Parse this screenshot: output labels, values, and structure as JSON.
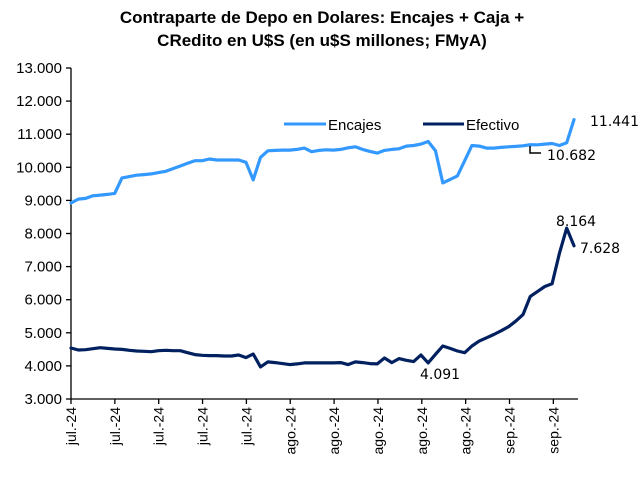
{
  "chart_data": {
    "type": "line",
    "title": [
      "Contraparte de Depo en Dolares: Encajes + Caja +",
      "CRedito en U$S  (en u$S millones; FMyA)"
    ],
    "xlabel": "",
    "ylabel": "",
    "ylim": [
      3000,
      13000
    ],
    "yticks": [
      3000,
      4000,
      5000,
      6000,
      7000,
      8000,
      9000,
      10000,
      11000,
      12000,
      13000
    ],
    "ytick_labels": [
      "3.000",
      "4.000",
      "5.000",
      "6.000",
      "7.000",
      "8.000",
      "9.000",
      "10.000",
      "11.000",
      "12.000",
      "13.000"
    ],
    "xtick_labels": [
      "jul.-24",
      "jul.-24",
      "jul.-24",
      "jul.-24",
      "jul.-24",
      "ago.-24",
      "ago.-24",
      "ago.-24",
      "ago.-24",
      "ago.-24",
      "sep.-24",
      "sep.-24",
      "sep.-24"
    ],
    "grid": false,
    "legend_position": "top-right",
    "n_points": 70,
    "series": [
      {
        "name": "Encajes",
        "color": "#3399ff",
        "values": [
          8920,
          9040,
          9060,
          9140,
          9160,
          9180,
          9210,
          9680,
          9720,
          9760,
          9780,
          9800,
          9840,
          9880,
          9960,
          10040,
          10120,
          10200,
          10200,
          10250,
          10220,
          10220,
          10220,
          10220,
          10150,
          9620,
          10300,
          10500,
          10510,
          10520,
          10520,
          10540,
          10580,
          10470,
          10510,
          10530,
          10520,
          10540,
          10590,
          10620,
          10540,
          10480,
          10430,
          10510,
          10540,
          10560,
          10640,
          10660,
          10700,
          10780,
          10500,
          9530,
          9630,
          9740,
          10200,
          10660,
          10640,
          10580,
          10580,
          10600,
          10620,
          10630,
          10650,
          10682,
          10680,
          10700,
          10720,
          10660,
          10740,
          11441
        ]
      },
      {
        "name": "Efectivo",
        "color": "#002060",
        "values": [
          4540,
          4480,
          4490,
          4520,
          4550,
          4530,
          4510,
          4500,
          4470,
          4450,
          4440,
          4430,
          4460,
          4470,
          4460,
          4460,
          4400,
          4340,
          4320,
          4310,
          4310,
          4300,
          4300,
          4330,
          4250,
          4360,
          3970,
          4120,
          4100,
          4070,
          4040,
          4060,
          4090,
          4090,
          4090,
          4090,
          4090,
          4100,
          4040,
          4120,
          4100,
          4070,
          4060,
          4240,
          4100,
          4220,
          4170,
          4130,
          4330,
          4091,
          4350,
          4600,
          4530,
          4450,
          4400,
          4600,
          4750,
          4850,
          4950,
          5060,
          5180,
          5350,
          5550,
          6100,
          6250,
          6400,
          6480,
          7400,
          8164,
          7628
        ]
      }
    ],
    "annotations": [
      {
        "series": "Encajes",
        "index": 69,
        "text": "11.441"
      },
      {
        "series": "Encajes",
        "index": 63,
        "text": "10.682"
      },
      {
        "series": "Efectivo",
        "index": 68,
        "text": "8.164"
      },
      {
        "series": "Efectivo",
        "index": 69,
        "text": "7.628"
      },
      {
        "series": "Efectivo",
        "index": 49,
        "text": "4.091"
      }
    ]
  }
}
